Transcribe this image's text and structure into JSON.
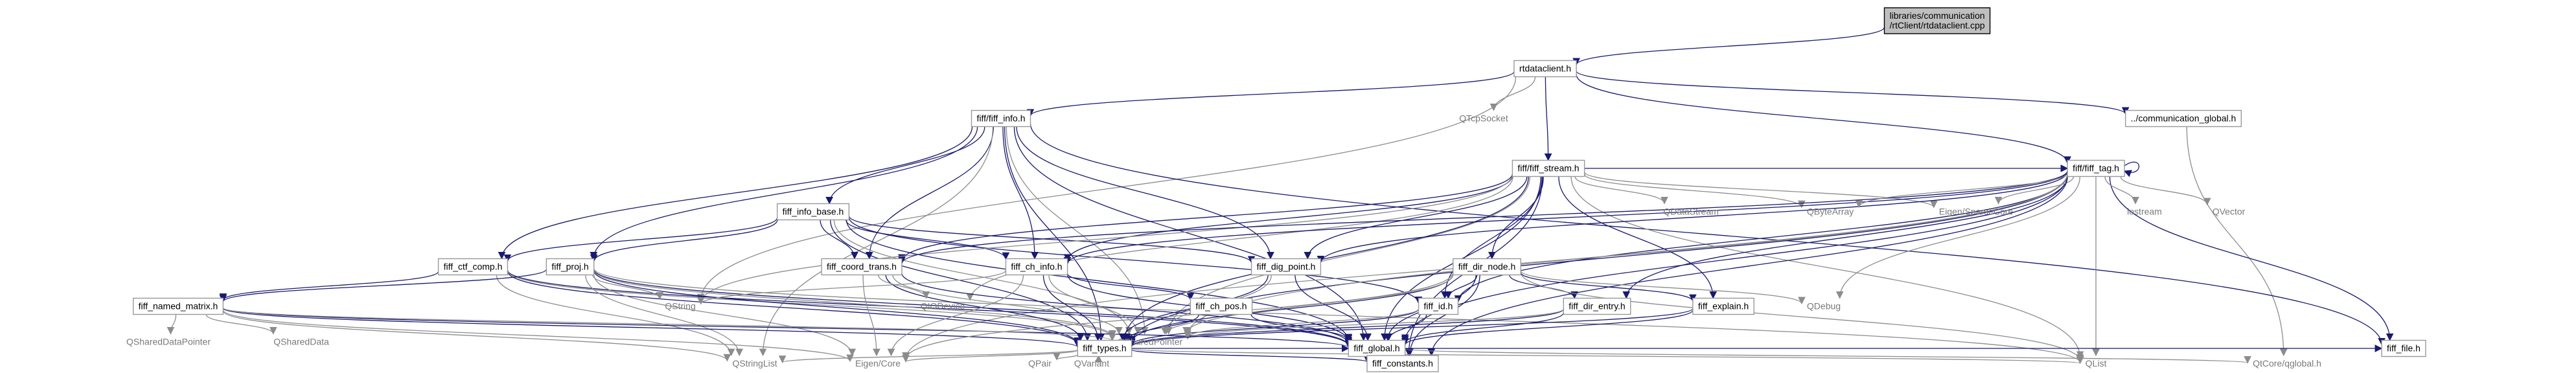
{
  "graph": {
    "nodes": [
      {
        "id": "root",
        "lines": [
          "libraries/communication",
          "/rtClient/rtdataclient.cpp"
        ],
        "kind": "focus"
      },
      {
        "id": "rtdataclient",
        "lines": [
          "rtdataclient.h"
        ],
        "kind": "file"
      },
      {
        "id": "fiff_info",
        "lines": [
          "fiff/fiff_info.h"
        ],
        "kind": "file"
      },
      {
        "id": "qtcpsocket",
        "lines": [
          "QTcpSocket"
        ],
        "kind": "ext"
      },
      {
        "id": "comm_global",
        "lines": [
          "../communication_global.h"
        ],
        "kind": "file"
      },
      {
        "id": "fiff_tag",
        "lines": [
          "fiff/fiff_tag.h"
        ],
        "kind": "file"
      },
      {
        "id": "fiff_stream",
        "lines": [
          "fiff/fiff_stream.h"
        ],
        "kind": "file"
      },
      {
        "id": "fiff_info_base",
        "lines": [
          "fiff_info_base.h"
        ],
        "kind": "file"
      },
      {
        "id": "qbytearray",
        "lines": [
          "QByteArray"
        ],
        "kind": "ext"
      },
      {
        "id": "eigen_sparse",
        "lines": [
          "Eigen/SparseCore"
        ],
        "kind": "ext"
      },
      {
        "id": "iostream",
        "lines": [
          "iostream"
        ],
        "kind": "ext"
      },
      {
        "id": "qvector",
        "lines": [
          "QVector"
        ],
        "kind": "ext"
      },
      {
        "id": "qdatastream",
        "lines": [
          "QDataStream"
        ],
        "kind": "ext"
      },
      {
        "id": "fiff_ctf_comp",
        "lines": [
          "fiff_ctf_comp.h"
        ],
        "kind": "file"
      },
      {
        "id": "fiff_proj",
        "lines": [
          "fiff_proj.h"
        ],
        "kind": "file"
      },
      {
        "id": "fiff_coord_trans",
        "lines": [
          "fiff_coord_trans.h"
        ],
        "kind": "file"
      },
      {
        "id": "fiff_ch_info",
        "lines": [
          "fiff_ch_info.h"
        ],
        "kind": "file"
      },
      {
        "id": "fiff_dig_point",
        "lines": [
          "fiff_dig_point.h"
        ],
        "kind": "file"
      },
      {
        "id": "fiff_dir_node",
        "lines": [
          "fiff_dir_node.h"
        ],
        "kind": "file"
      },
      {
        "id": "fiff_named_matrix",
        "lines": [
          "fiff_named_matrix.h"
        ],
        "kind": "file"
      },
      {
        "id": "qstring",
        "lines": [
          "QString"
        ],
        "kind": "ext"
      },
      {
        "id": "qiodevice",
        "lines": [
          "QIODevice"
        ],
        "kind": "ext"
      },
      {
        "id": "fiff_ch_pos",
        "lines": [
          "fiff_ch_pos.h"
        ],
        "kind": "file"
      },
      {
        "id": "fiff_id",
        "lines": [
          "fiff_id.h"
        ],
        "kind": "file"
      },
      {
        "id": "fiff_dir_entry",
        "lines": [
          "fiff_dir_entry.h"
        ],
        "kind": "file"
      },
      {
        "id": "fiff_explain",
        "lines": [
          "fiff_explain.h"
        ],
        "kind": "file"
      },
      {
        "id": "qdebug",
        "lines": [
          "QDebug"
        ],
        "kind": "ext"
      },
      {
        "id": "qshareddatapointer",
        "lines": [
          "QSharedDataPointer"
        ],
        "kind": "ext"
      },
      {
        "id": "qshareddata",
        "lines": [
          "QSharedData"
        ],
        "kind": "ext"
      },
      {
        "id": "qsharedpointer",
        "lines": [
          "QSharedPointer"
        ],
        "kind": "ext"
      },
      {
        "id": "fiff_types",
        "lines": [
          "fiff_types.h"
        ],
        "kind": "file"
      },
      {
        "id": "fiff_global",
        "lines": [
          "fiff_global.h"
        ],
        "kind": "file"
      },
      {
        "id": "fiff_file",
        "lines": [
          "fiff_file.h"
        ],
        "kind": "file"
      },
      {
        "id": "qstringlist",
        "lines": [
          "QStringList"
        ],
        "kind": "ext"
      },
      {
        "id": "eigen_core",
        "lines": [
          "Eigen/Core"
        ],
        "kind": "ext"
      },
      {
        "id": "qpair",
        "lines": [
          "QPair"
        ],
        "kind": "ext"
      },
      {
        "id": "qvariant",
        "lines": [
          "QVariant"
        ],
        "kind": "ext"
      },
      {
        "id": "fiff_constants",
        "lines": [
          "fiff_constants.h"
        ],
        "kind": "file"
      },
      {
        "id": "qlist",
        "lines": [
          "QList"
        ],
        "kind": "ext"
      },
      {
        "id": "qtcore_qglobal",
        "lines": [
          "QtCore/qglobal.h"
        ],
        "kind": "ext"
      }
    ],
    "edges": [
      [
        "root",
        "rtdataclient"
      ],
      [
        "rtdataclient",
        "fiff_info"
      ],
      [
        "rtdataclient",
        "qtcpsocket"
      ],
      [
        "rtdataclient",
        "comm_global"
      ],
      [
        "rtdataclient",
        "fiff_tag"
      ],
      [
        "rtdataclient",
        "fiff_stream"
      ],
      [
        "rtdataclient",
        "qstring"
      ],
      [
        "comm_global",
        "qtcore_qglobal"
      ],
      [
        "fiff_info",
        "fiff_info_base"
      ],
      [
        "fiff_info",
        "fiff_ctf_comp"
      ],
      [
        "fiff_info",
        "fiff_proj"
      ],
      [
        "fiff_info",
        "fiff_coord_trans"
      ],
      [
        "fiff_info",
        "fiff_ch_info"
      ],
      [
        "fiff_info",
        "fiff_dig_point"
      ],
      [
        "fiff_info",
        "fiff_types"
      ],
      [
        "fiff_info",
        "fiff_global"
      ],
      [
        "fiff_info",
        "qsharedpointer"
      ],
      [
        "fiff_info",
        "qstringlist"
      ],
      [
        "fiff_info",
        "fiff_file"
      ],
      [
        "fiff_info_base",
        "fiff_ctf_comp"
      ],
      [
        "fiff_info_base",
        "fiff_proj"
      ],
      [
        "fiff_info_base",
        "fiff_coord_trans"
      ],
      [
        "fiff_info_base",
        "fiff_ch_info"
      ],
      [
        "fiff_info_base",
        "fiff_dig_point"
      ],
      [
        "fiff_info_base",
        "fiff_id"
      ],
      [
        "fiff_info_base",
        "fiff_types"
      ],
      [
        "fiff_info_base",
        "fiff_global"
      ],
      [
        "fiff_info_base",
        "qsharedpointer"
      ],
      [
        "fiff_stream",
        "fiff_tag"
      ],
      [
        "fiff_stream",
        "fiff_dir_node"
      ],
      [
        "fiff_stream",
        "fiff_id"
      ],
      [
        "fiff_stream",
        "fiff_dig_point"
      ],
      [
        "fiff_stream",
        "fiff_ch_info"
      ],
      [
        "fiff_stream",
        "fiff_coord_trans"
      ],
      [
        "fiff_stream",
        "fiff_explain"
      ],
      [
        "fiff_stream",
        "fiff_types"
      ],
      [
        "fiff_stream",
        "fiff_global"
      ],
      [
        "fiff_stream",
        "qdatastream"
      ],
      [
        "fiff_stream",
        "qbytearray"
      ],
      [
        "fiff_stream",
        "qlist"
      ],
      [
        "fiff_stream",
        "qstring"
      ],
      [
        "fiff_stream",
        "qiodevice"
      ],
      [
        "fiff_stream",
        "qsharedpointer"
      ],
      [
        "fiff_stream",
        "fiff_constants"
      ],
      [
        "fiff_stream",
        "eigen_sparse"
      ],
      [
        "fiff_tag",
        "fiff_tag"
      ],
      [
        "fiff_tag",
        "fiff_types"
      ],
      [
        "fiff_tag",
        "fiff_global"
      ],
      [
        "fiff_tag",
        "fiff_file"
      ],
      [
        "fiff_tag",
        "fiff_coord_trans"
      ],
      [
        "fiff_tag",
        "fiff_ch_info"
      ],
      [
        "fiff_tag",
        "fiff_dig_point"
      ],
      [
        "fiff_tag",
        "fiff_id"
      ],
      [
        "fiff_tag",
        "fiff_dir_entry"
      ],
      [
        "fiff_tag",
        "qbytearray"
      ],
      [
        "fiff_tag",
        "eigen_sparse"
      ],
      [
        "fiff_tag",
        "iostream"
      ],
      [
        "fiff_tag",
        "qvector"
      ],
      [
        "fiff_tag",
        "qdebug"
      ],
      [
        "fiff_tag",
        "qlist"
      ],
      [
        "fiff_tag",
        "qsharedpointer"
      ],
      [
        "fiff_tag",
        "fiff_constants"
      ],
      [
        "fiff_tag",
        "eigen_core"
      ],
      [
        "fiff_ctf_comp",
        "fiff_named_matrix"
      ],
      [
        "fiff_ctf_comp",
        "fiff_types"
      ],
      [
        "fiff_ctf_comp",
        "fiff_global"
      ],
      [
        "fiff_ctf_comp",
        "qsharedpointer"
      ],
      [
        "fiff_ctf_comp",
        "qstringlist"
      ],
      [
        "fiff_proj",
        "fiff_named_matrix"
      ],
      [
        "fiff_proj",
        "fiff_types"
      ],
      [
        "fiff_proj",
        "fiff_global"
      ],
      [
        "fiff_proj",
        "qstring"
      ],
      [
        "fiff_proj",
        "qstringlist"
      ],
      [
        "fiff_proj",
        "qsharedpointer"
      ],
      [
        "fiff_proj",
        "eigen_core"
      ],
      [
        "fiff_proj",
        "qlist"
      ],
      [
        "fiff_named_matrix",
        "fiff_types"
      ],
      [
        "fiff_named_matrix",
        "fiff_global"
      ],
      [
        "fiff_named_matrix",
        "qshareddatapointer"
      ],
      [
        "fiff_named_matrix",
        "qshareddata"
      ],
      [
        "fiff_named_matrix",
        "qsharedpointer"
      ],
      [
        "fiff_named_matrix",
        "qstringlist"
      ],
      [
        "fiff_named_matrix",
        "eigen_core"
      ],
      [
        "fiff_coord_trans",
        "fiff_types"
      ],
      [
        "fiff_coord_trans",
        "fiff_global"
      ],
      [
        "fiff_coord_trans",
        "qiodevice"
      ],
      [
        "fiff_coord_trans",
        "qsharedpointer"
      ],
      [
        "fiff_coord_trans",
        "eigen_core"
      ],
      [
        "fiff_ch_info",
        "fiff_ch_pos"
      ],
      [
        "fiff_ch_info",
        "fiff_types"
      ],
      [
        "fiff_ch_info",
        "fiff_global"
      ],
      [
        "fiff_ch_info",
        "qstring"
      ],
      [
        "fiff_ch_info",
        "qsharedpointer"
      ],
      [
        "fiff_ch_info",
        "eigen_core"
      ],
      [
        "fiff_ch_pos",
        "fiff_types"
      ],
      [
        "fiff_ch_pos",
        "fiff_global"
      ],
      [
        "fiff_ch_pos",
        "qsharedpointer"
      ],
      [
        "fiff_dig_point",
        "fiff_types"
      ],
      [
        "fiff_dig_point",
        "fiff_global"
      ],
      [
        "fiff_dig_point",
        "qsharedpointer"
      ],
      [
        "fiff_dir_node",
        "fiff_id"
      ],
      [
        "fiff_dir_node",
        "fiff_dir_entry"
      ],
      [
        "fiff_dir_node",
        "fiff_types"
      ],
      [
        "fiff_dir_node",
        "fiff_global"
      ],
      [
        "fiff_dir_node",
        "qdebug"
      ],
      [
        "fiff_dir_node",
        "qlist"
      ],
      [
        "fiff_dir_node",
        "qsharedpointer"
      ],
      [
        "fiff_dir_node",
        "fiff_explain"
      ],
      [
        "fiff_dir_node",
        "eigen_core"
      ],
      [
        "fiff_dir_node",
        "fiff_constants"
      ],
      [
        "fiff_id",
        "fiff_types"
      ],
      [
        "fiff_id",
        "fiff_global"
      ],
      [
        "fiff_id",
        "qsharedpointer"
      ],
      [
        "fiff_dir_entry",
        "fiff_types"
      ],
      [
        "fiff_dir_entry",
        "fiff_global"
      ],
      [
        "fiff_dir_entry",
        "qsharedpointer"
      ],
      [
        "fiff_explain",
        "fiff_types"
      ],
      [
        "fiff_explain",
        "fiff_global"
      ],
      [
        "fiff_types",
        "fiff_global"
      ],
      [
        "fiff_types",
        "qstringlist"
      ],
      [
        "fiff_types",
        "eigen_core"
      ],
      [
        "fiff_types",
        "qpair"
      ],
      [
        "fiff_types",
        "qvariant"
      ],
      [
        "fiff_types",
        "fiff_constants"
      ],
      [
        "fiff_types",
        "qlist"
      ],
      [
        "fiff_global",
        "qtcore_qglobal"
      ],
      [
        "fiff_global",
        "fiff_file"
      ]
    ]
  }
}
